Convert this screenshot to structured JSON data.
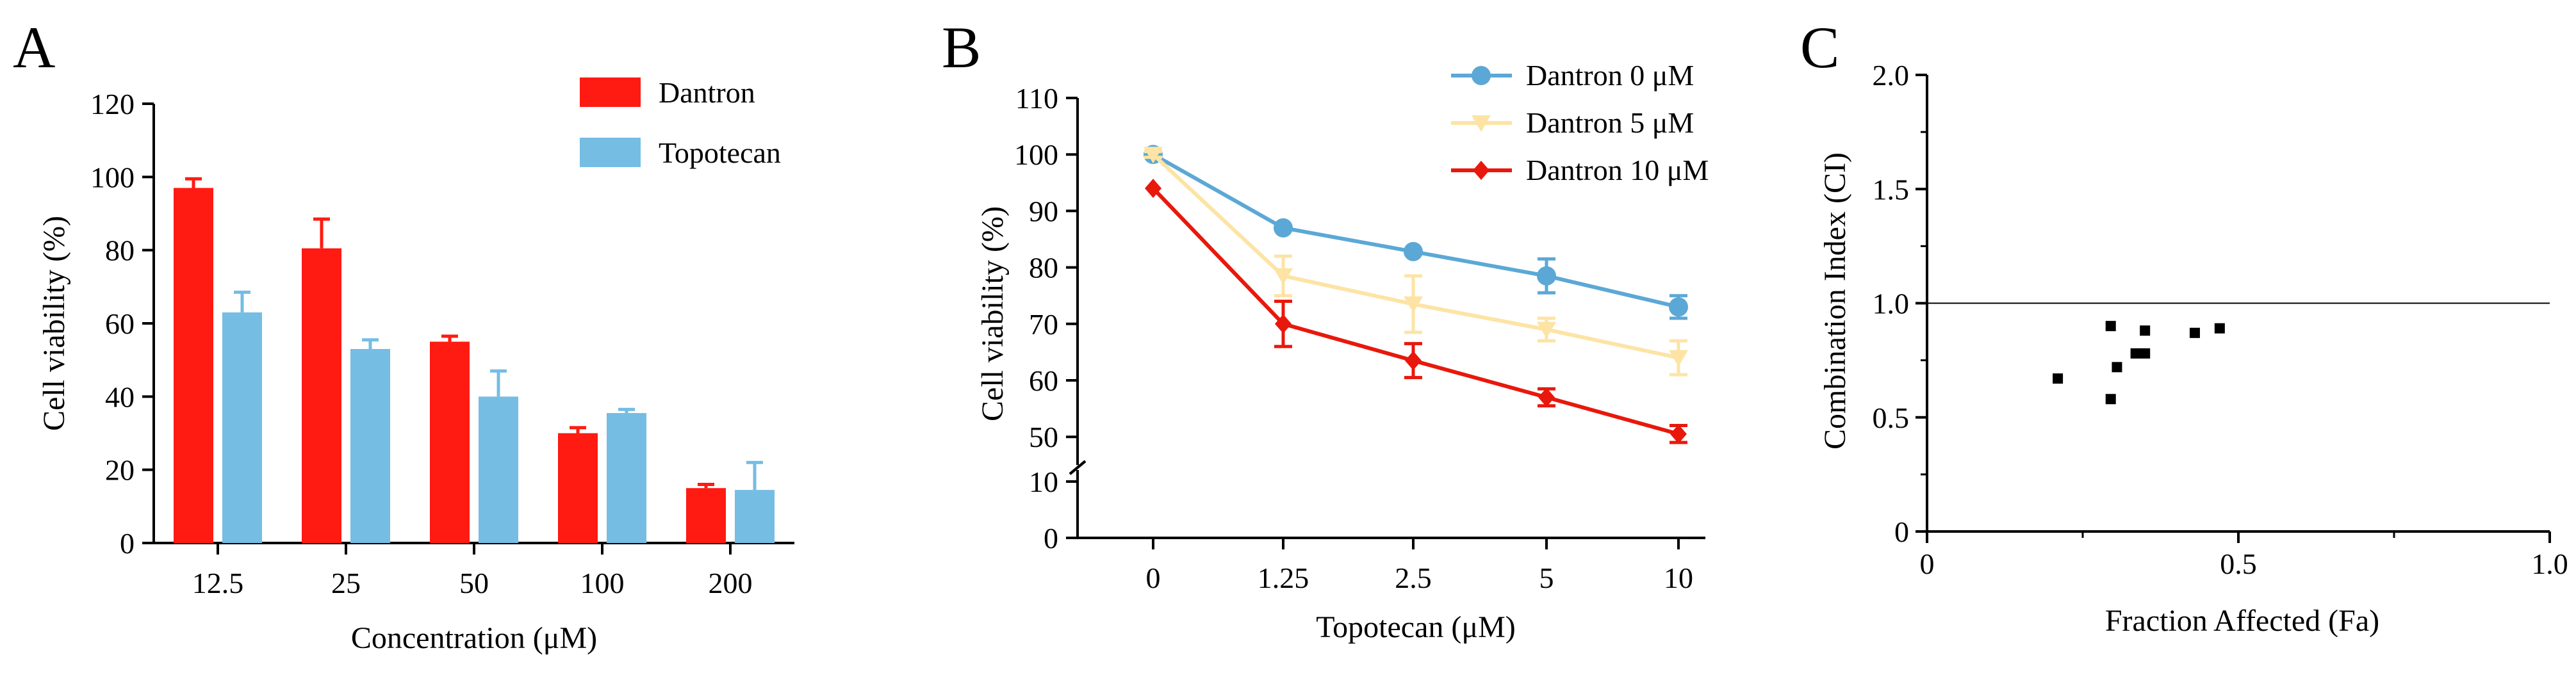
{
  "figure": {
    "panels": [
      "A",
      "B",
      "C"
    ]
  },
  "chart_data": [
    {
      "panel": "A",
      "type": "bar",
      "title": "",
      "xlabel": "Concentration (μM)",
      "ylabel": "Cell viability (%)",
      "categories": [
        "12.5",
        "25",
        "50",
        "100",
        "200"
      ],
      "ylim": [
        0,
        120
      ],
      "yticks": [
        0,
        20,
        40,
        60,
        80,
        100,
        120
      ],
      "legend_position": "top-right",
      "series": [
        {
          "name": "Dantron",
          "color": "#ff1a12",
          "values": [
            97,
            80.5,
            55,
            30,
            15
          ],
          "errors": [
            2.5,
            8,
            1.5,
            1.5,
            1
          ]
        },
        {
          "name": "Topotecan",
          "color": "#75bde3",
          "values": [
            63,
            53,
            40,
            35.5,
            14.5
          ],
          "errors": [
            5.5,
            2.5,
            7,
            1,
            7.5
          ]
        }
      ]
    },
    {
      "panel": "B",
      "type": "line",
      "title": "",
      "xlabel": "Topotecan (μM)",
      "ylabel": "Cell viability (%)",
      "categories": [
        "0",
        "1.25",
        "2.5",
        "5",
        "10"
      ],
      "ylim": [
        0,
        110
      ],
      "y_axis_break": [
        10,
        45
      ],
      "yticks": [
        0,
        10,
        50,
        60,
        70,
        80,
        90,
        100,
        110
      ],
      "legend_position": "top-right",
      "series": [
        {
          "name": "Dantron 0 μM",
          "marker": "circle",
          "color": "#5ba8d6",
          "values": [
            100,
            87,
            82.8,
            78.5,
            73
          ],
          "errors": [
            0,
            0,
            0,
            3,
            2
          ]
        },
        {
          "name": "Dantron 5 μM",
          "marker": "triangle-down",
          "color": "#fde4a5",
          "values": [
            100,
            78.5,
            73.5,
            69,
            64
          ],
          "errors": [
            0.5,
            3.5,
            5,
            2,
            3
          ]
        },
        {
          "name": "Dantron 10 μM",
          "marker": "diamond",
          "color": "#e8180c",
          "values": [
            94,
            70,
            63.5,
            57,
            50.5
          ],
          "errors": [
            0,
            4,
            3,
            1.5,
            1.5
          ]
        }
      ]
    },
    {
      "panel": "C",
      "type": "scatter",
      "title": "",
      "xlabel": "Fraction Affected (Fa)",
      "ylabel": "Combination Index (CI)",
      "xlim": [
        0,
        1.0
      ],
      "ylim": [
        0,
        2.0
      ],
      "xticks": [
        "0",
        "0.5",
        "1.0"
      ],
      "yticks": [
        "0",
        "0.5",
        "1.0",
        "1.5",
        "2.0"
      ],
      "reference_line": 1.0,
      "x": [
        0.21,
        0.295,
        0.295,
        0.305,
        0.335,
        0.35,
        0.35,
        0.43,
        0.47
      ],
      "y": [
        0.67,
        0.58,
        0.9,
        0.72,
        0.78,
        0.88,
        0.78,
        0.87,
        0.89
      ]
    }
  ]
}
